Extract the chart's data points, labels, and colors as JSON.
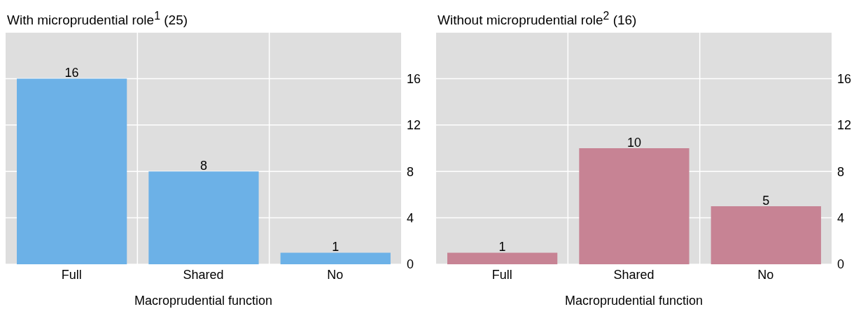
{
  "chart_data": [
    {
      "type": "bar",
      "title": "With microprudential role$^{1}$ (25)",
      "xlabel": "Macroprudential function",
      "categories": [
        "Full",
        "Shared",
        "No"
      ],
      "values": [
        16,
        8,
        1
      ],
      "color": "#6cb1e7",
      "ylim": [
        0,
        20
      ],
      "yticks": [
        0,
        4,
        8,
        12,
        16
      ],
      "grid": true,
      "data_labels": true
    },
    {
      "type": "bar",
      "title": "Without microprudential role$^{2}$ (16)",
      "xlabel": "Macroprudential function",
      "categories": [
        "Full",
        "Shared",
        "No"
      ],
      "values": [
        1,
        10,
        5
      ],
      "color": "#c78394",
      "ylim": [
        0,
        20
      ],
      "yticks": [
        0,
        4,
        8,
        12,
        16
      ],
      "grid": true,
      "data_labels": true
    }
  ]
}
